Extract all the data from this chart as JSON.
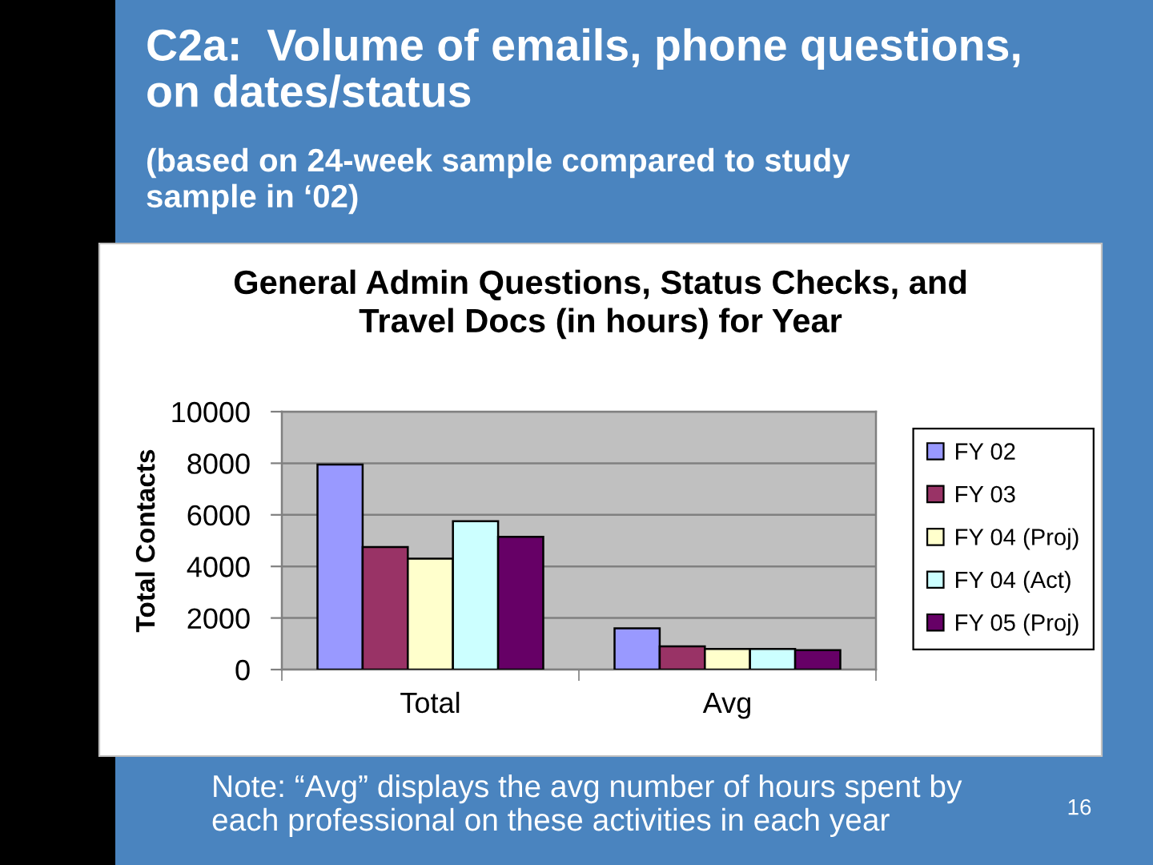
{
  "chart_data": {
    "type": "bar",
    "title": "General Admin Questions, Status Checks, and Travel Docs (in hours) for Year",
    "annotations": [
      "C2a:  Volume of emails, phone questions, on dates/status",
      "(based on 24-week sample compared to study sample in ‘02)",
      "Note: “Avg” displays the avg number of hours spent by each professional on these activities in each year",
      "16"
    ],
    "categories": [
      "Total",
      "Avg"
    ],
    "series": [
      {
        "name": "FY 02",
        "color": "#9999ff",
        "values": [
          7950,
          1600
        ]
      },
      {
        "name": "FY 03",
        "color": "#993366",
        "values": [
          4750,
          900
        ]
      },
      {
        "name": "FY 04 (Proj)",
        "color": "#ffffcc",
        "values": [
          4300,
          800
        ]
      },
      {
        "name": "FY 04 (Act)",
        "color": "#ccffff",
        "values": [
          5750,
          800
        ]
      },
      {
        "name": "FY 05 (Proj)",
        "color": "#660066",
        "values": [
          5150,
          750
        ]
      }
    ],
    "ylabel": "Total Contacts",
    "ylim": [
      0,
      10000
    ],
    "yticks": [
      0,
      2000,
      4000,
      6000,
      8000,
      10000
    ],
    "grid": "y",
    "legend": "right"
  }
}
